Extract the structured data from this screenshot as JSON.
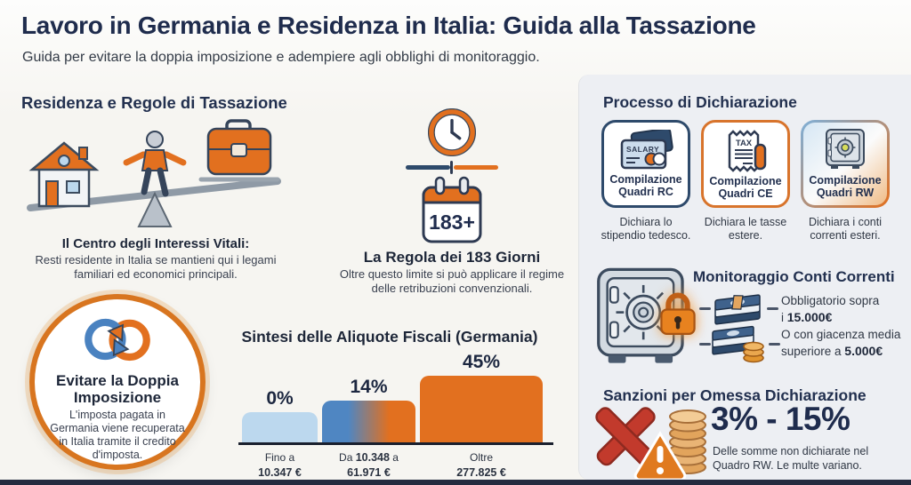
{
  "header": {
    "title": "Lavoro in Germania e Residenza in Italia: Guida alla Tassazione",
    "subtitle": "Guida per evitare la doppia imposizione e adempiere agli obblighi di monitoraggio."
  },
  "left": {
    "heading": "Residenza e Regole di Tassazione",
    "vital": {
      "title": "Il Centro degli Interessi Vitali:",
      "body": "Resti residente in Italia se mantieni qui i legami familiari ed economici principali."
    },
    "double_taxation": {
      "title": "Evitare la Doppia Imposizione",
      "body": "L'imposta pagata in Germania viene recuperata in Italia tramite il credito d'imposta."
    }
  },
  "middle": {
    "rule": {
      "badge": "183+",
      "title": "La Regola dei 183 Giorni",
      "body": "Oltre questo limite si può applicare il regime delle retribuzioni convenzionali."
    }
  },
  "chart_data": {
    "type": "bar",
    "title": "Sintesi delle Aliquote Fiscali (Germania)",
    "categories": [
      "Fino a 10.347 €",
      "Da 10.348 a 61.971 €",
      "Oltre 277.825 €"
    ],
    "values": [
      0,
      14,
      45
    ],
    "value_labels": [
      "0%",
      "14%",
      "45%"
    ],
    "ylim": [
      0,
      50
    ],
    "grid": "off",
    "bar_colors": [
      "#bcd8ee",
      "linear-gradient(90deg,#4f86c2 0%,#4f86c2 28%,#e2701f 72%)",
      "#e2701f"
    ],
    "ticks": [
      {
        "l1_pre": "Fino a",
        "l1_strong": "",
        "l1_post": "",
        "l2": "10.347 €"
      },
      {
        "l1_pre": "Da ",
        "l1_strong": "10.348",
        "l1_post": " a",
        "l2": "61.971 €"
      },
      {
        "l1_pre": "Oltre",
        "l1_strong": "",
        "l1_post": "",
        "l2": "277.825 €"
      }
    ]
  },
  "right": {
    "process": {
      "heading": "Processo di Dichiarazione",
      "cards": [
        {
          "label": "Compilazione Quadri RC",
          "caption": "Dichiara lo stipendio tedesco.",
          "icon": "salary-card",
          "icon_text": "SALARY"
        },
        {
          "label": "Compilazione Quadri CE",
          "caption": "Dichiara le tasse estere.",
          "icon": "tax-receipt",
          "icon_text": "TAX"
        },
        {
          "label": "Compilazione Quadri RW",
          "caption": "Dichiara i conti correnti esteri.",
          "icon": "safe-vault"
        }
      ]
    },
    "monitoring": {
      "heading": "Monitoraggio Conti Correnti",
      "items": [
        {
          "line1": "Obbligatorio sopra",
          "line2_pre": "i ",
          "line2_strong": "15.000€"
        },
        {
          "line1": "O con giacenza media",
          "line2_pre": "superiore a ",
          "line2_strong": "5.000€"
        }
      ]
    },
    "sanctions": {
      "heading": "Sanzioni per Omessa Dichiarazione",
      "range": "3% - 15%",
      "caption": "Delle somme non dichiarate nel Quadro RW. Le multe variano."
    }
  },
  "colors": {
    "navy": "#1f2c4d",
    "accent_orange": "#e2701f",
    "accent_blue": "#4a82c0",
    "light_blue": "#bcd8ee",
    "alert_red": "#c23a2c"
  }
}
